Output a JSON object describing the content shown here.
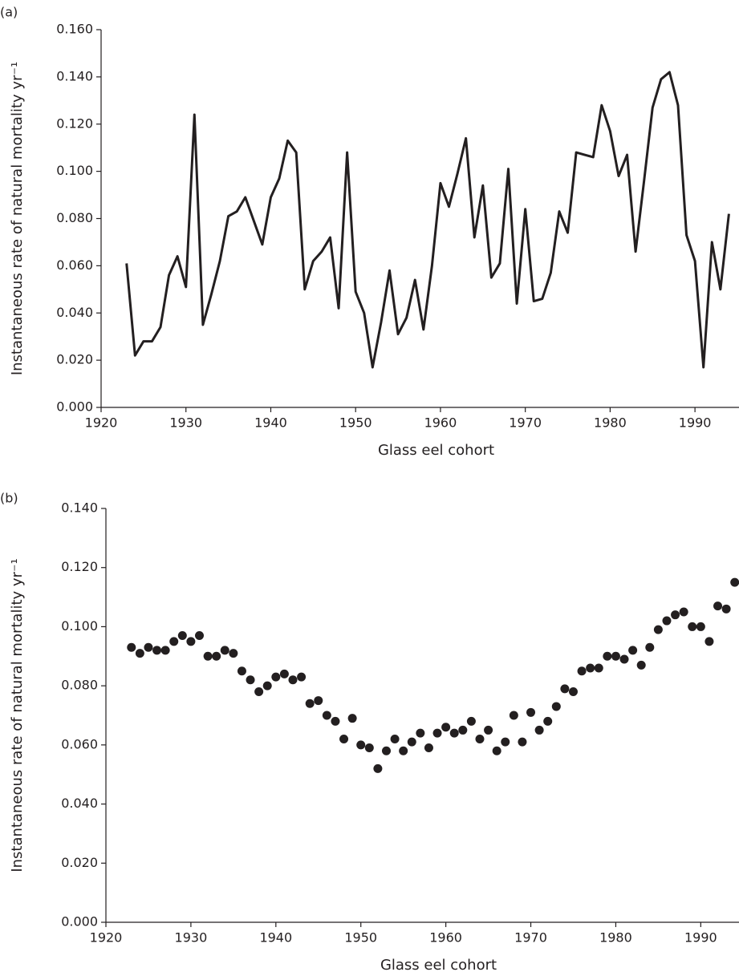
{
  "chart_data": [
    {
      "type": "line",
      "panel_label": "(a)",
      "x_label": "Glass eel cohort",
      "y_label": "Instantaneous rate of natural mortality yr⁻¹",
      "color": "#231f20",
      "x": [
        1923,
        1924,
        1925,
        1926,
        1927,
        1928,
        1929,
        1930,
        1931,
        1932,
        1933,
        1934,
        1935,
        1936,
        1937,
        1938,
        1939,
        1940,
        1941,
        1942,
        1943,
        1944,
        1945,
        1946,
        1947,
        1948,
        1949,
        1950,
        1951,
        1952,
        1953,
        1954,
        1955,
        1956,
        1957,
        1958,
        1959,
        1960,
        1961,
        1962,
        1963,
        1964,
        1965,
        1966,
        1967,
        1968,
        1969,
        1970,
        1971,
        1972,
        1973,
        1974,
        1975,
        1976,
        1977,
        1978,
        1979,
        1980,
        1981,
        1982,
        1983,
        1984,
        1985,
        1986,
        1987,
        1988,
        1989,
        1990,
        1991,
        1992,
        1993,
        1994
      ],
      "values": [
        0.061,
        0.022,
        0.028,
        0.028,
        0.034,
        0.056,
        0.064,
        0.051,
        0.124,
        0.035,
        0.048,
        0.062,
        0.081,
        0.083,
        0.089,
        0.079,
        0.069,
        0.089,
        0.097,
        0.113,
        0.108,
        0.05,
        0.062,
        0.066,
        0.072,
        0.042,
        0.108,
        0.049,
        0.04,
        0.017,
        0.036,
        0.058,
        0.031,
        0.038,
        0.054,
        0.033,
        0.06,
        0.095,
        0.085,
        0.099,
        0.114,
        0.072,
        0.094,
        0.055,
        0.061,
        0.101,
        0.044,
        0.084,
        0.045,
        0.046,
        0.057,
        0.083,
        0.074,
        0.108,
        0.107,
        0.106,
        0.128,
        0.117,
        0.098,
        0.107,
        0.066,
        0.096,
        0.127,
        0.139,
        0.142,
        0.128,
        0.073,
        0.062,
        0.017,
        0.07,
        0.05,
        0.082
      ],
      "xlim": [
        1920,
        1995
      ],
      "xticks": [
        1920,
        1930,
        1940,
        1950,
        1960,
        1970,
        1980,
        1990
      ],
      "ylim": [
        0,
        0.16
      ],
      "yticks": [
        {
          "value": 0,
          "label": "0.000"
        },
        {
          "value": 0.02,
          "label": "0.020"
        },
        {
          "value": 0.04,
          "label": "0.040"
        },
        {
          "value": 0.06,
          "label": "0.060"
        },
        {
          "value": 0.08,
          "label": "0.080"
        },
        {
          "value": 0.1,
          "label": "0.100"
        },
        {
          "value": 0.12,
          "label": "0.120"
        },
        {
          "value": 0.14,
          "label": "0.140"
        },
        {
          "value": 0.16,
          "label": "0.160"
        }
      ]
    },
    {
      "type": "scatter",
      "panel_label": "(b)",
      "x_label": "Glass eel cohort",
      "y_label": "Instantaneous rate of natural mortality yr⁻¹",
      "color": "#231f20",
      "x": [
        1923,
        1924,
        1925,
        1926,
        1927,
        1928,
        1929,
        1930,
        1931,
        1932,
        1933,
        1934,
        1935,
        1936,
        1937,
        1938,
        1939,
        1940,
        1941,
        1942,
        1943,
        1944,
        1945,
        1946,
        1947,
        1948,
        1949,
        1950,
        1951,
        1952,
        1953,
        1954,
        1955,
        1956,
        1957,
        1958,
        1959,
        1960,
        1961,
        1962,
        1963,
        1964,
        1965,
        1966,
        1967,
        1968,
        1969,
        1970,
        1971,
        1972,
        1973,
        1974,
        1975,
        1976,
        1977,
        1978,
        1979,
        1980,
        1981,
        1982,
        1983,
        1984,
        1985,
        1986,
        1987,
        1988,
        1989,
        1990,
        1991,
        1992,
        1993,
        1994
      ],
      "values": [
        0.093,
        0.091,
        0.093,
        0.092,
        0.092,
        0.095,
        0.097,
        0.095,
        0.097,
        0.09,
        0.09,
        0.092,
        0.091,
        0.085,
        0.082,
        0.078,
        0.08,
        0.083,
        0.084,
        0.082,
        0.083,
        0.074,
        0.075,
        0.07,
        0.068,
        0.062,
        0.069,
        0.06,
        0.059,
        0.052,
        0.058,
        0.062,
        0.058,
        0.061,
        0.064,
        0.059,
        0.064,
        0.066,
        0.064,
        0.065,
        0.068,
        0.062,
        0.065,
        0.058,
        0.061,
        0.07,
        0.061,
        0.071,
        0.065,
        0.068,
        0.073,
        0.079,
        0.078,
        0.085,
        0.086,
        0.086,
        0.09,
        0.09,
        0.089,
        0.092,
        0.087,
        0.093,
        0.099,
        0.102,
        0.104,
        0.105,
        0.1,
        0.1,
        0.095,
        0.107,
        0.106,
        0.115
      ],
      "xlim": [
        1920,
        1994.5
      ],
      "xticks": [
        1920,
        1930,
        1940,
        1950,
        1960,
        1970,
        1980,
        1990
      ],
      "ylim": [
        0,
        0.14
      ],
      "yticks": [
        {
          "value": 0,
          "label": "0.000"
        },
        {
          "value": 0.02,
          "label": "0.020"
        },
        {
          "value": 0.04,
          "label": "0.040"
        },
        {
          "value": 0.06,
          "label": "0.060"
        },
        {
          "value": 0.08,
          "label": "0.080"
        },
        {
          "value": 0.1,
          "label": "0.100"
        },
        {
          "value": 0.12,
          "label": "0.120"
        },
        {
          "value": 0.14,
          "label": "0.140"
        }
      ]
    }
  ]
}
